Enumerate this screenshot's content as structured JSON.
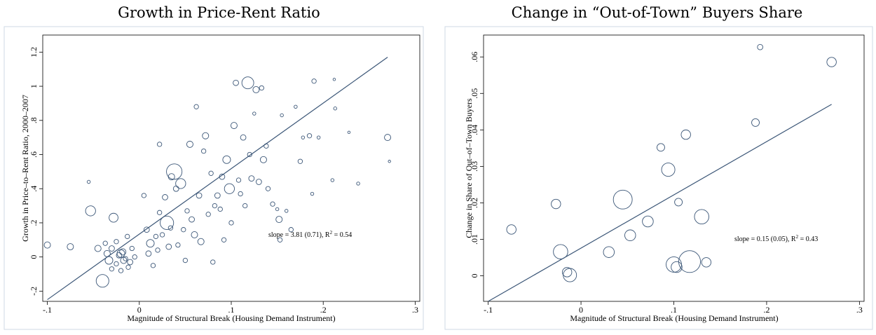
{
  "charts": [
    {
      "title": "Growth in Price-Rent Ratio",
      "xlabel": "Magnitude of Structural Break (Housing Demand Instrument)",
      "ylabel": "Growth in Price–to–Rent Ratio, 2000–2007",
      "annotation": {
        "prefix": "slope = 3.81 (0.71), R",
        "sup": "2",
        "suffix": " = 0.54"
      },
      "x_ticks": [
        {
          "v": -0.1,
          "label": "-.1"
        },
        {
          "v": 0,
          "label": "0"
        },
        {
          "v": 0.1,
          "label": ".1"
        },
        {
          "v": 0.2,
          "label": ".2"
        },
        {
          "v": 0.3,
          "label": ".3"
        }
      ],
      "y_ticks": [
        {
          "v": -0.2,
          "label": "-.2"
        },
        {
          "v": 0,
          "label": "0"
        },
        {
          "v": 0.2,
          "label": ".2"
        },
        {
          "v": 0.4,
          "label": ".4"
        },
        {
          "v": 0.6,
          "label": ".6"
        },
        {
          "v": 0.8,
          "label": ".8"
        },
        {
          "v": 1,
          "label": "1"
        },
        {
          "v": 1.2,
          "label": "1.2"
        }
      ]
    },
    {
      "title": "Change in “Out-of-Town” Buyers Share",
      "xlabel": "Magnitude of Structural Break (Housing Demand Instrument)",
      "ylabel": "Change in Share of Out–of–Town Buyers",
      "annotation": {
        "prefix": "slope = 0.15 (0.05), R",
        "sup": "2",
        "suffix": " = 0.43"
      },
      "x_ticks": [
        {
          "v": -0.1,
          "label": "-.1"
        },
        {
          "v": 0,
          "label": "0"
        },
        {
          "v": 0.1,
          "label": ".1"
        },
        {
          "v": 0.2,
          "label": ".2"
        },
        {
          "v": 0.3,
          "label": ".3"
        }
      ],
      "y_ticks": [
        {
          "v": 0,
          "label": "0"
        },
        {
          "v": 0.01,
          "label": ".01"
        },
        {
          "v": 0.02,
          "label": ".02"
        },
        {
          "v": 0.03,
          "label": ".03"
        },
        {
          "v": 0.04,
          "label": ".04"
        },
        {
          "v": 0.05,
          "label": ".05"
        },
        {
          "v": 0.06,
          "label": ".06"
        }
      ]
    }
  ],
  "chart_data": [
    {
      "type": "scatter",
      "title": "Growth in Price-Rent Ratio",
      "xlabel": "Magnitude of Structural Break (Housing Demand Instrument)",
      "ylabel": "Growth in Price–to–Rent Ratio, 2000–2007",
      "xlim": [
        -0.105,
        0.305
      ],
      "ylim": [
        -0.26,
        1.3
      ],
      "grid": false,
      "marker_color": "#3b5677",
      "fit_line": {
        "x": [
          -0.1,
          0.27
        ],
        "y": [
          -0.25,
          1.17
        ]
      },
      "points": [
        {
          "x": -0.1,
          "y": 0.07,
          "w": 2
        },
        {
          "x": -0.075,
          "y": 0.06,
          "w": 2
        },
        {
          "x": -0.055,
          "y": 0.44,
          "w": 0.5
        },
        {
          "x": -0.053,
          "y": 0.27,
          "w": 5
        },
        {
          "x": -0.04,
          "y": -0.14,
          "w": 8
        },
        {
          "x": -0.037,
          "y": 0.08,
          "w": 1
        },
        {
          "x": -0.035,
          "y": 0.02,
          "w": 2
        },
        {
          "x": -0.033,
          "y": -0.02,
          "w": 3
        },
        {
          "x": -0.03,
          "y": 0.05,
          "w": 1.5
        },
        {
          "x": -0.028,
          "y": 0.23,
          "w": 4
        },
        {
          "x": -0.025,
          "y": -0.04,
          "w": 1
        },
        {
          "x": -0.022,
          "y": 0.01,
          "w": 1.5
        },
        {
          "x": -0.02,
          "y": -0.08,
          "w": 1
        },
        {
          "x": -0.018,
          "y": 0.03,
          "w": 2
        },
        {
          "x": -0.015,
          "y": -0.01,
          "w": 1
        },
        {
          "x": -0.013,
          "y": 0.12,
          "w": 1
        },
        {
          "x": -0.01,
          "y": -0.03,
          "w": 1.5
        },
        {
          "x": -0.008,
          "y": 0.05,
          "w": 1
        },
        {
          "x": -0.005,
          "y": 0.0,
          "w": 1
        },
        {
          "x": -0.03,
          "y": -0.07,
          "w": 1
        },
        {
          "x": -0.045,
          "y": 0.05,
          "w": 2
        },
        {
          "x": -0.02,
          "y": 0.02,
          "w": 3
        },
        {
          "x": -0.012,
          "y": -0.06,
          "w": 1
        },
        {
          "x": -0.025,
          "y": 0.09,
          "w": 1
        },
        {
          "x": -0.017,
          "y": -0.02,
          "w": 2
        },
        {
          "x": 0.005,
          "y": 0.36,
          "w": 1
        },
        {
          "x": 0.008,
          "y": 0.16,
          "w": 1.5
        },
        {
          "x": 0.01,
          "y": 0.02,
          "w": 1.5
        },
        {
          "x": 0.012,
          "y": 0.08,
          "w": 3
        },
        {
          "x": 0.015,
          "y": -0.05,
          "w": 1
        },
        {
          "x": 0.018,
          "y": 0.12,
          "w": 1
        },
        {
          "x": 0.02,
          "y": 0.04,
          "w": 1
        },
        {
          "x": 0.022,
          "y": 0.26,
          "w": 1
        },
        {
          "x": 0.022,
          "y": 0.66,
          "w": 1
        },
        {
          "x": 0.025,
          "y": 0.13,
          "w": 1
        },
        {
          "x": 0.028,
          "y": 0.35,
          "w": 1.5
        },
        {
          "x": 0.03,
          "y": 0.2,
          "w": 9
        },
        {
          "x": 0.032,
          "y": 0.06,
          "w": 1.5
        },
        {
          "x": 0.034,
          "y": 0.17,
          "w": 1
        },
        {
          "x": 0.035,
          "y": 0.47,
          "w": 2
        },
        {
          "x": 0.038,
          "y": 0.5,
          "w": 12
        },
        {
          "x": 0.04,
          "y": 0.4,
          "w": 1.5
        },
        {
          "x": 0.042,
          "y": 0.07,
          "w": 1
        },
        {
          "x": 0.045,
          "y": 0.43,
          "w": 5
        },
        {
          "x": 0.048,
          "y": 0.16,
          "w": 1
        },
        {
          "x": 0.05,
          "y": -0.02,
          "w": 1
        },
        {
          "x": 0.052,
          "y": 0.27,
          "w": 1
        },
        {
          "x": 0.055,
          "y": 0.66,
          "w": 2
        },
        {
          "x": 0.057,
          "y": 0.22,
          "w": 1.5
        },
        {
          "x": 0.06,
          "y": 0.13,
          "w": 2
        },
        {
          "x": 0.062,
          "y": 0.88,
          "w": 1
        },
        {
          "x": 0.065,
          "y": 0.36,
          "w": 1.5
        },
        {
          "x": 0.067,
          "y": 0.09,
          "w": 2
        },
        {
          "x": 0.07,
          "y": 0.62,
          "w": 1
        },
        {
          "x": 0.072,
          "y": 0.71,
          "w": 2
        },
        {
          "x": 0.075,
          "y": 0.25,
          "w": 1
        },
        {
          "x": 0.078,
          "y": 0.49,
          "w": 1
        },
        {
          "x": 0.08,
          "y": -0.03,
          "w": 1
        },
        {
          "x": 0.082,
          "y": 0.3,
          "w": 1
        },
        {
          "x": 0.085,
          "y": 0.36,
          "w": 1.5
        },
        {
          "x": 0.088,
          "y": 0.28,
          "w": 1
        },
        {
          "x": 0.09,
          "y": 0.47,
          "w": 1.5
        },
        {
          "x": 0.092,
          "y": 0.1,
          "w": 1
        },
        {
          "x": 0.095,
          "y": 0.57,
          "w": 3
        },
        {
          "x": 0.098,
          "y": 0.4,
          "w": 5
        },
        {
          "x": 0.1,
          "y": 0.2,
          "w": 1
        },
        {
          "x": 0.103,
          "y": 0.77,
          "w": 2
        },
        {
          "x": 0.105,
          "y": 1.02,
          "w": 1.5
        },
        {
          "x": 0.108,
          "y": 0.45,
          "w": 1
        },
        {
          "x": 0.11,
          "y": 0.37,
          "w": 1
        },
        {
          "x": 0.113,
          "y": 0.7,
          "w": 1.5
        },
        {
          "x": 0.115,
          "y": 0.3,
          "w": 1
        },
        {
          "x": 0.118,
          "y": 1.02,
          "w": 7
        },
        {
          "x": 0.12,
          "y": 0.6,
          "w": 1
        },
        {
          "x": 0.122,
          "y": 0.46,
          "w": 1.5
        },
        {
          "x": 0.125,
          "y": 0.84,
          "w": 0.5
        },
        {
          "x": 0.127,
          "y": 0.98,
          "w": 2
        },
        {
          "x": 0.13,
          "y": 0.44,
          "w": 1.5
        },
        {
          "x": 0.133,
          "y": 0.99,
          "w": 1
        },
        {
          "x": 0.135,
          "y": 0.57,
          "w": 2
        },
        {
          "x": 0.138,
          "y": 0.65,
          "w": 1
        },
        {
          "x": 0.14,
          "y": 0.4,
          "w": 1
        },
        {
          "x": 0.145,
          "y": 0.31,
          "w": 1
        },
        {
          "x": 0.15,
          "y": 0.28,
          "w": 0.5
        },
        {
          "x": 0.152,
          "y": 0.22,
          "w": 2
        },
        {
          "x": 0.153,
          "y": 0.1,
          "w": 1
        },
        {
          "x": 0.155,
          "y": 0.83,
          "w": 0.5
        },
        {
          "x": 0.16,
          "y": 0.27,
          "w": 0.5
        },
        {
          "x": 0.165,
          "y": 0.16,
          "w": 1
        },
        {
          "x": 0.17,
          "y": 0.88,
          "w": 0.5
        },
        {
          "x": 0.175,
          "y": 0.56,
          "w": 1
        },
        {
          "x": 0.178,
          "y": 0.7,
          "w": 0.5
        },
        {
          "x": 0.185,
          "y": 0.71,
          "w": 1
        },
        {
          "x": 0.188,
          "y": 0.37,
          "w": 0.5
        },
        {
          "x": 0.19,
          "y": 1.03,
          "w": 1
        },
        {
          "x": 0.195,
          "y": 0.7,
          "w": 0.5
        },
        {
          "x": 0.21,
          "y": 0.45,
          "w": 0.5
        },
        {
          "x": 0.212,
          "y": 1.04,
          "w": 0.3
        },
        {
          "x": 0.213,
          "y": 0.87,
          "w": 0.5
        },
        {
          "x": 0.228,
          "y": 0.73,
          "w": 0.3
        },
        {
          "x": 0.238,
          "y": 0.43,
          "w": 0.5
        },
        {
          "x": 0.27,
          "y": 0.7,
          "w": 2
        },
        {
          "x": 0.272,
          "y": 0.56,
          "w": 0.3
        }
      ]
    },
    {
      "type": "scatter",
      "title": "Change in “Out-of-Town” Buyers Share",
      "xlabel": "Magnitude of Structural Break (Housing Demand Instrument)",
      "ylabel": "Change in Share of Out–of–Town Buyers",
      "xlim": [
        -0.105,
        0.305
      ],
      "ylim": [
        -0.007,
        0.066
      ],
      "grid": false,
      "marker_color": "#3b5677",
      "fit_line": {
        "x": [
          -0.1,
          0.27
        ],
        "y": [
          -0.007,
          0.047
        ]
      },
      "points": [
        {
          "x": -0.075,
          "y": 0.0127,
          "w": 1.5
        },
        {
          "x": -0.027,
          "y": 0.0197,
          "w": 1.5
        },
        {
          "x": -0.022,
          "y": 0.0066,
          "w": 3.5
        },
        {
          "x": -0.015,
          "y": 0.001,
          "w": 1.5
        },
        {
          "x": -0.012,
          "y": 0.0002,
          "w": 3
        },
        {
          "x": 0.03,
          "y": 0.0065,
          "w": 2
        },
        {
          "x": 0.045,
          "y": 0.0209,
          "w": 6
        },
        {
          "x": 0.053,
          "y": 0.0111,
          "w": 2
        },
        {
          "x": 0.072,
          "y": 0.0149,
          "w": 2
        },
        {
          "x": 0.086,
          "y": 0.0352,
          "w": 1
        },
        {
          "x": 0.094,
          "y": 0.0291,
          "w": 3
        },
        {
          "x": 0.1,
          "y": 0.0031,
          "w": 4
        },
        {
          "x": 0.103,
          "y": 0.0024,
          "w": 2
        },
        {
          "x": 0.105,
          "y": 0.0202,
          "w": 1
        },
        {
          "x": 0.113,
          "y": 0.0387,
          "w": 1.5
        },
        {
          "x": 0.117,
          "y": 0.0039,
          "w": 8
        },
        {
          "x": 0.13,
          "y": 0.0162,
          "w": 3.5
        },
        {
          "x": 0.135,
          "y": 0.0037,
          "w": 1.5
        },
        {
          "x": 0.188,
          "y": 0.042,
          "w": 1
        },
        {
          "x": 0.193,
          "y": 0.0627,
          "w": 0.5
        },
        {
          "x": 0.27,
          "y": 0.0586,
          "w": 1.5
        }
      ]
    }
  ]
}
